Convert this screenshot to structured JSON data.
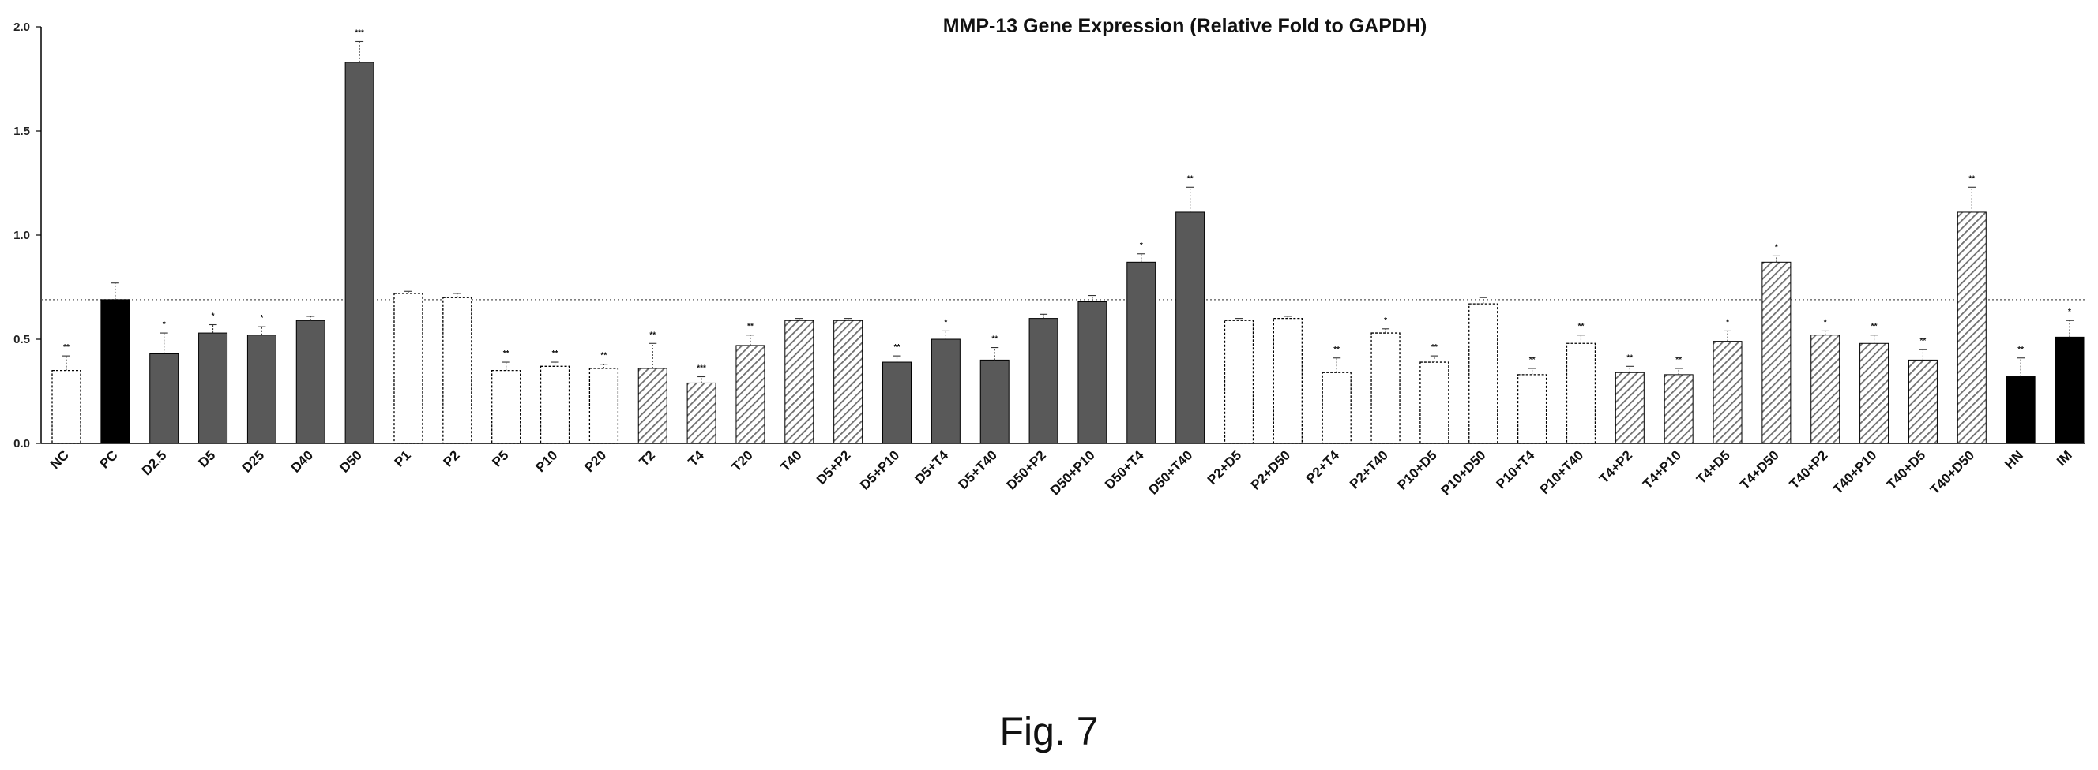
{
  "figure": {
    "caption": "Fig. 7"
  },
  "colors": {
    "solid": "#000000",
    "dark": "#595959",
    "hatch": "#6e6e6e",
    "open": "#ffffff",
    "stroke": "#000000"
  },
  "chart_data": {
    "type": "bar",
    "title": "MMP-13 Gene Expression (Relative Fold to GAPDH)",
    "xlabel": "",
    "ylabel": "",
    "ylim": [
      0,
      2.0
    ],
    "yticks": [
      "0.0",
      "0.5",
      "1.0",
      "1.5",
      "2.0"
    ],
    "reference_line": 0.69,
    "grid": false,
    "legend": "none",
    "categories": [
      "NC",
      "PC",
      "D2.5",
      "D5",
      "D25",
      "D40",
      "D50",
      "P1",
      "P2",
      "P5",
      "P10",
      "P20",
      "T2",
      "T4",
      "T20",
      "T40",
      "D5+P2",
      "D5+P10",
      "D5+T4",
      "D5+T40",
      "D50+P2",
      "D50+P10",
      "D50+T4",
      "D50+T40",
      "P2+D5",
      "P2+D50",
      "P2+T4",
      "P2+T40",
      "P10+D5",
      "P10+D50",
      "P10+T4",
      "P10+T40",
      "T4+P2",
      "T4+P10",
      "T4+D5",
      "T4+D50",
      "T40+P2",
      "T40+P10",
      "T40+D5",
      "T40+D50",
      "HN",
      "IM"
    ],
    "values": [
      0.35,
      0.69,
      0.43,
      0.53,
      0.52,
      0.59,
      1.83,
      0.72,
      0.7,
      0.35,
      0.37,
      0.36,
      0.36,
      0.29,
      0.47,
      0.59,
      0.59,
      0.39,
      0.5,
      0.4,
      0.6,
      0.68,
      0.87,
      1.11,
      0.59,
      0.6,
      0.34,
      0.53,
      0.39,
      0.67,
      0.33,
      0.48,
      0.34,
      0.33,
      0.49,
      0.87,
      0.52,
      0.48,
      0.4,
      1.11,
      0.32,
      0.51
    ],
    "errors": [
      0.07,
      0.08,
      0.1,
      0.04,
      0.04,
      0.02,
      0.1,
      0.01,
      0.02,
      0.04,
      0.02,
      0.02,
      0.12,
      0.03,
      0.05,
      0.01,
      0.01,
      0.03,
      0.04,
      0.06,
      0.02,
      0.03,
      0.04,
      0.12,
      0.01,
      0.01,
      0.07,
      0.02,
      0.03,
      0.03,
      0.03,
      0.04,
      0.03,
      0.03,
      0.05,
      0.03,
      0.02,
      0.04,
      0.05,
      0.12,
      0.09,
      0.08
    ],
    "significance": [
      "**",
      "",
      "*",
      "*",
      "*",
      "",
      "***",
      "",
      "",
      "**",
      "**",
      "**",
      "**",
      "***",
      "**",
      "",
      "",
      "**",
      "*",
      "**",
      "",
      "",
      "*",
      "**",
      "",
      "",
      "**",
      "*",
      "**",
      "",
      "**",
      "**",
      "**",
      "**",
      "*",
      "*",
      "*",
      "**",
      "**",
      "**",
      "**",
      "*"
    ],
    "fills": [
      "open",
      "solid",
      "dark",
      "dark",
      "dark",
      "dark",
      "dark",
      "open",
      "open",
      "open",
      "open",
      "open",
      "hatch",
      "hatch",
      "hatch",
      "hatch",
      "hatch",
      "dark",
      "dark",
      "dark",
      "dark",
      "dark",
      "dark",
      "dark",
      "open",
      "open",
      "open",
      "open",
      "open",
      "open",
      "open",
      "open",
      "hatch",
      "hatch",
      "hatch",
      "hatch",
      "hatch",
      "hatch",
      "hatch",
      "hatch",
      "solid",
      "solid"
    ]
  }
}
